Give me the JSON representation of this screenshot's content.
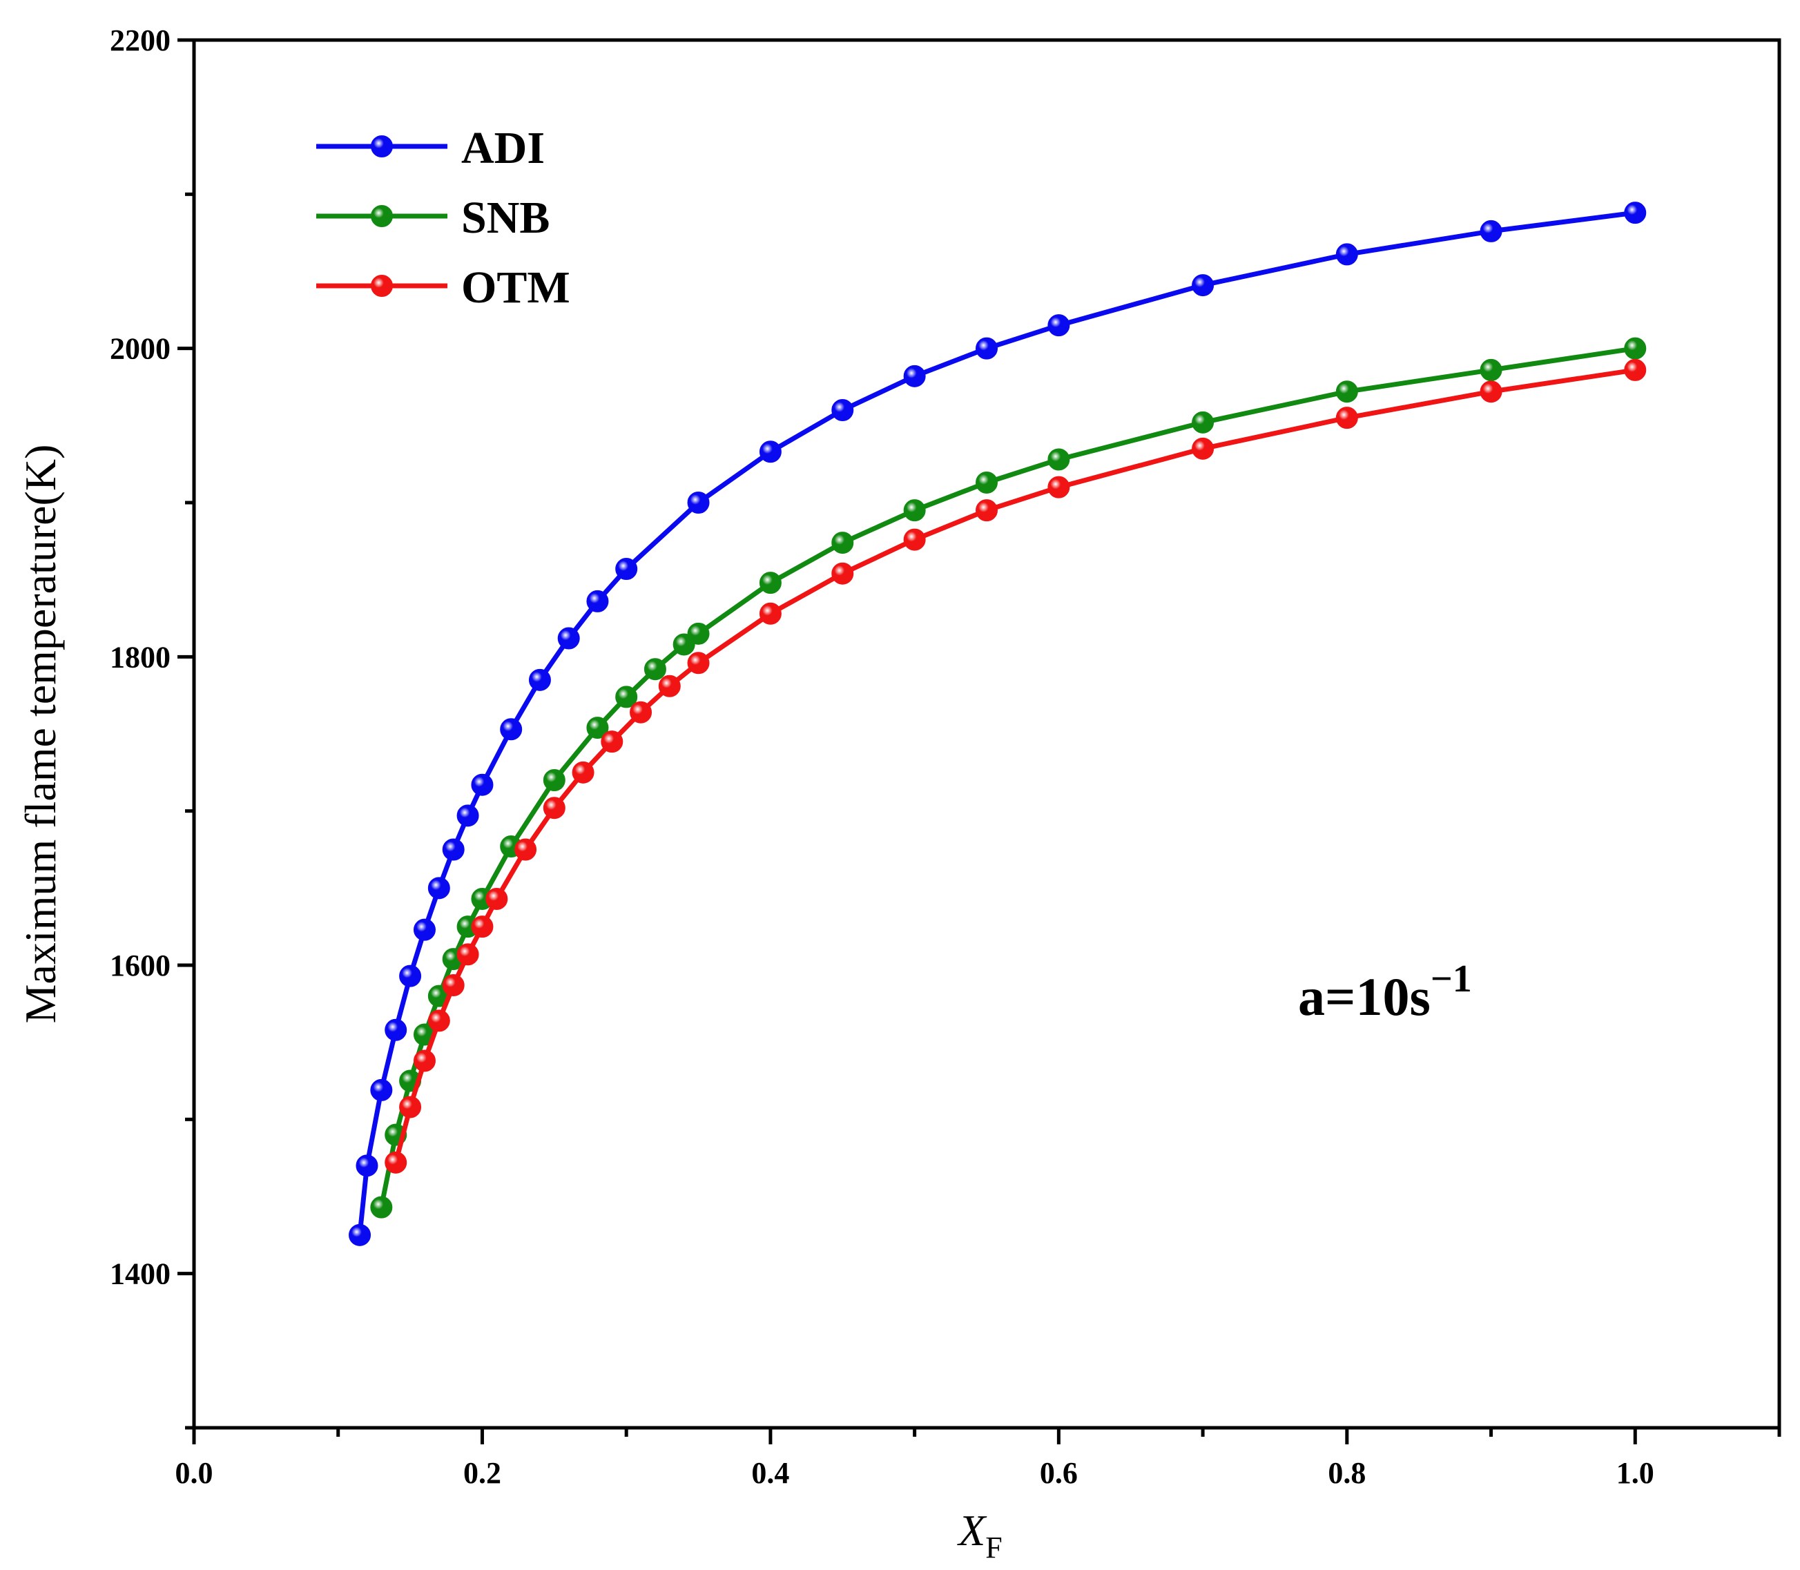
{
  "chart_data": {
    "type": "line",
    "title": "",
    "xlabel": "X",
    "xlabel_subscript": "F",
    "ylabel": "Maximum flame temperature(K)",
    "xlim": [
      0.0,
      1.1
    ],
    "ylim": [
      1300,
      2200
    ],
    "x_ticks": [
      0.0,
      0.2,
      0.4,
      0.6,
      0.8,
      1.0
    ],
    "x_tick_labels": [
      "0.0",
      "0.2",
      "0.4",
      "0.6",
      "0.8",
      "1.0"
    ],
    "y_ticks": [
      1400,
      1600,
      1800,
      2000,
      2200
    ],
    "y_tick_labels": [
      "1400",
      "1600",
      "1800",
      "2000",
      "2200"
    ],
    "y_minor_ticks": [
      1300,
      1500,
      1700,
      1900,
      2100
    ],
    "x_minor_ticks": [
      0.1,
      0.3,
      0.5,
      0.7,
      0.9,
      1.1
    ],
    "grid": false,
    "legend_position": "top-left",
    "annotation": {
      "base": "a=10s",
      "superscript": "−1"
    },
    "series": [
      {
        "name": "ADI",
        "color": "#0a0af0",
        "x": [
          0.115,
          0.12,
          0.13,
          0.14,
          0.15,
          0.16,
          0.17,
          0.18,
          0.19,
          0.2,
          0.22,
          0.24,
          0.26,
          0.28,
          0.3,
          0.35,
          0.4,
          0.45,
          0.5,
          0.55,
          0.6,
          0.7,
          0.8,
          0.9,
          1.0
        ],
        "y": [
          1425,
          1470,
          1519,
          1558,
          1593,
          1623,
          1650,
          1675,
          1697,
          1717,
          1753,
          1785,
          1812,
          1836,
          1857,
          1900,
          1933,
          1960,
          1982,
          2000,
          2015,
          2041,
          2061,
          2076,
          2088
        ]
      },
      {
        "name": "SNB",
        "color": "#118a11",
        "x": [
          0.13,
          0.14,
          0.15,
          0.16,
          0.17,
          0.18,
          0.19,
          0.2,
          0.22,
          0.25,
          0.28,
          0.3,
          0.32,
          0.34,
          0.35,
          0.4,
          0.45,
          0.5,
          0.55,
          0.6,
          0.7,
          0.8,
          0.9,
          1.0
        ],
        "y": [
          1443,
          1490,
          1525,
          1555,
          1580,
          1604,
          1625,
          1643,
          1677,
          1720,
          1754,
          1774,
          1792,
          1808,
          1815,
          1848,
          1874,
          1895,
          1913,
          1928,
          1952,
          1972,
          1986,
          2000
        ]
      },
      {
        "name": "OTM",
        "color": "#f01414",
        "x": [
          0.14,
          0.15,
          0.16,
          0.17,
          0.18,
          0.19,
          0.2,
          0.21,
          0.23,
          0.25,
          0.27,
          0.29,
          0.31,
          0.33,
          0.35,
          0.4,
          0.45,
          0.5,
          0.55,
          0.6,
          0.7,
          0.8,
          0.9,
          1.0
        ],
        "y": [
          1472,
          1508,
          1538,
          1564,
          1587,
          1607,
          1625,
          1643,
          1675,
          1702,
          1725,
          1745,
          1764,
          1781,
          1796,
          1828,
          1854,
          1876,
          1895,
          1910,
          1935,
          1955,
          1972,
          1986
        ]
      }
    ]
  }
}
